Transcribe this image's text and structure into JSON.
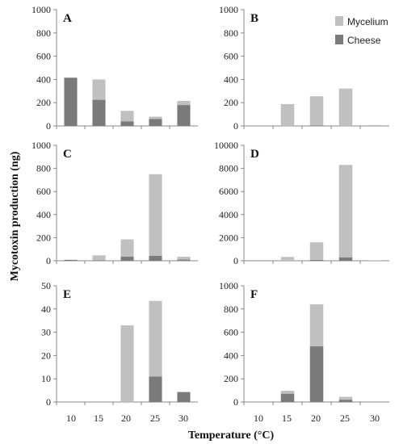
{
  "figure": {
    "ylabel": "Mycotoxin production (ng)",
    "xlabel": "Temperature (°C)"
  },
  "legend": [
    {
      "name": "Mycelium",
      "color": "#c0c0c0"
    },
    {
      "name": "Cheese",
      "color": "#7a7a7a"
    }
  ],
  "chart_data": [
    {
      "type": "bar",
      "stacked": true,
      "panel": "A",
      "categories": [
        "10",
        "15",
        "20",
        "25",
        "30"
      ],
      "ylim": [
        0,
        1000
      ],
      "yticks": [
        0,
        200,
        400,
        600,
        800,
        1000
      ],
      "series": [
        {
          "name": "Cheese",
          "values": [
            415,
            225,
            40,
            60,
            180
          ]
        },
        {
          "name": "Mycelium",
          "values": [
            0,
            175,
            90,
            20,
            35
          ]
        }
      ]
    },
    {
      "type": "bar",
      "stacked": true,
      "panel": "B",
      "categories": [
        "10",
        "15",
        "20",
        "25",
        "30"
      ],
      "ylim": [
        0,
        1000
      ],
      "yticks": [
        0,
        200,
        400,
        600,
        800,
        1000
      ],
      "series": [
        {
          "name": "Cheese",
          "values": [
            0,
            0,
            5,
            0,
            0
          ]
        },
        {
          "name": "Mycelium",
          "values": [
            0,
            188,
            250,
            322,
            8
          ]
        }
      ]
    },
    {
      "type": "bar",
      "stacked": true,
      "panel": "C",
      "categories": [
        "10",
        "15",
        "20",
        "25",
        "30"
      ],
      "ylim": [
        0,
        1000
      ],
      "yticks": [
        0,
        200,
        400,
        600,
        800,
        1000
      ],
      "series": [
        {
          "name": "Cheese",
          "values": [
            8,
            5,
            35,
            42,
            10
          ]
        },
        {
          "name": "Mycelium",
          "values": [
            0,
            42,
            150,
            708,
            25
          ]
        }
      ]
    },
    {
      "type": "bar",
      "stacked": true,
      "panel": "D",
      "categories": [
        "10",
        "15",
        "20",
        "25",
        "30"
      ],
      "ylim": [
        0,
        10000
      ],
      "yticks": [
        0,
        2000,
        4000,
        6000,
        8000,
        10000
      ],
      "series": [
        {
          "name": "Cheese",
          "values": [
            0,
            0,
            80,
            300,
            0
          ]
        },
        {
          "name": "Mycelium",
          "values": [
            0,
            330,
            1520,
            8000,
            50
          ]
        }
      ]
    },
    {
      "type": "bar",
      "stacked": true,
      "panel": "E",
      "categories": [
        "10",
        "15",
        "20",
        "25",
        "30"
      ],
      "ylim": [
        0,
        50
      ],
      "yticks": [
        0,
        10,
        20,
        30,
        40,
        50
      ],
      "series": [
        {
          "name": "Cheese",
          "values": [
            0,
            0,
            0,
            11,
            4.3
          ]
        },
        {
          "name": "Mycelium",
          "values": [
            0,
            0,
            33,
            32.5,
            0
          ]
        }
      ]
    },
    {
      "type": "bar",
      "stacked": true,
      "panel": "F",
      "categories": [
        "10",
        "15",
        "20",
        "25",
        "30"
      ],
      "ylim": [
        0,
        1000
      ],
      "yticks": [
        0,
        200,
        400,
        600,
        800,
        1000
      ],
      "series": [
        {
          "name": "Cheese",
          "values": [
            0,
            72,
            480,
            20,
            0
          ]
        },
        {
          "name": "Mycelium",
          "values": [
            0,
            25,
            360,
            25,
            0
          ]
        }
      ]
    }
  ]
}
